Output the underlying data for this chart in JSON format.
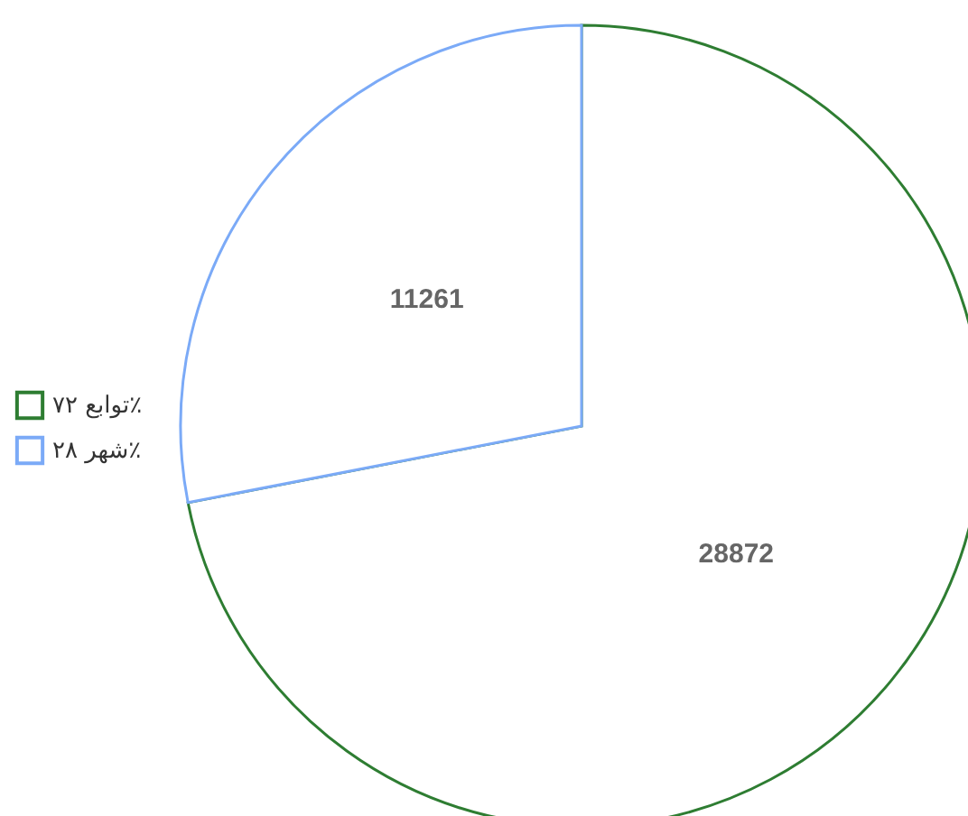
{
  "chart_data": {
    "type": "pie",
    "categories": [
      "توابع ۷۲٪",
      "شهر ۲۸٪"
    ],
    "values": [
      28872,
      11261
    ],
    "colors": [
      "#2e7d32",
      "#7baaf7"
    ],
    "data_labels": true,
    "legend": "left"
  }
}
